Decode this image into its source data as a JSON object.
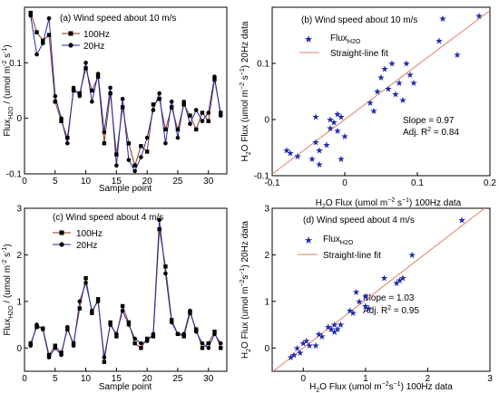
{
  "colors": {
    "c100": "#8B3A1A",
    "c20": "#1F2AA8",
    "star": "#1F2AA8",
    "fit": "#D9826A"
  },
  "chart_data": [
    {
      "id": "a",
      "type": "line",
      "title": "(a) Wind speed about 10 m/s",
      "xlabel": "Sample point",
      "ylabel": "Flux_H2O / (umol m^-2 s^-1)",
      "ylabel_parts": {
        "main": "Flux",
        "sub": "H2O",
        "rest1": " / (umol m",
        "sup1": "-2",
        "rest2": " s",
        "sup2": "-1",
        "rest3": ")"
      },
      "xlim": [
        0,
        33
      ],
      "ylim": [
        -0.1,
        0.2
      ],
      "xticks": [
        0,
        5,
        10,
        15,
        20,
        25,
        30
      ],
      "yticks": [
        -0.1,
        0,
        0.1
      ],
      "ytick_labels": [
        "-0.1",
        "0",
        "0.1"
      ],
      "x": [
        1,
        2,
        3,
        4,
        5,
        6,
        7,
        8,
        9,
        10,
        11,
        12,
        13,
        14,
        15,
        16,
        17,
        18,
        19,
        20,
        21,
        22,
        23,
        24,
        25,
        26,
        27,
        28,
        29,
        30,
        31,
        32
      ],
      "series": [
        {
          "name": "100Hz",
          "marker": "square",
          "values": [
            0.19,
            0.155,
            0.14,
            0.15,
            0.03,
            -0.005,
            -0.035,
            0.05,
            0.045,
            0.09,
            0.05,
            0.075,
            -0.045,
            0.045,
            -0.065,
            0.02,
            -0.045,
            -0.085,
            -0.05,
            -0.06,
            0.025,
            0.035,
            -0.02,
            0.02,
            -0.02,
            0.025,
            0.005,
            -0.02,
            0.01,
            -0.005,
            0.07,
            0.01
          ]
        },
        {
          "name": "20Hz",
          "marker": "circle",
          "values": [
            0.185,
            0.115,
            0.135,
            0.18,
            0.04,
            0.0,
            -0.045,
            0.055,
            0.04,
            0.1,
            0.03,
            0.08,
            -0.025,
            0.055,
            -0.085,
            0.035,
            -0.075,
            -0.095,
            -0.07,
            -0.035,
            0.015,
            0.045,
            -0.045,
            0.03,
            -0.035,
            0.03,
            -0.01,
            0.015,
            -0.005,
            0.01,
            0.075,
            0.005
          ]
        }
      ],
      "legend": "upper-center"
    },
    {
      "id": "b",
      "type": "scatter",
      "title": "(b) Wind speed about 10 m/s",
      "xlabel": "H2O Flux (umol m^-2 s^-1) 100Hz data",
      "ylabel": "H2O Flux (umol m^-2 s^-1) 20Hz data",
      "xlim": [
        -0.1,
        0.2
      ],
      "ylim": [
        -0.1,
        0.2
      ],
      "xticks": [
        -0.1,
        0,
        0.1,
        0.2
      ],
      "xtick_labels": [
        "-0.1",
        "0",
        "0.1",
        "0.2"
      ],
      "yticks": [
        -0.1,
        0,
        0.1
      ],
      "ytick_labels": [
        "-0.1",
        "0",
        "0.1"
      ],
      "points": [
        [
          -0.08,
          -0.055
        ],
        [
          -0.075,
          -0.06
        ],
        [
          -0.065,
          -0.065
        ],
        [
          -0.045,
          -0.07
        ],
        [
          -0.04,
          -0.04
        ],
        [
          -0.035,
          -0.055
        ],
        [
          -0.035,
          -0.08
        ],
        [
          -0.025,
          -0.045
        ],
        [
          -0.02,
          -0.015
        ],
        [
          -0.02,
          0.0
        ],
        [
          -0.015,
          -0.005
        ],
        [
          -0.01,
          0.01
        ],
        [
          -0.005,
          0.005
        ],
        [
          0.0,
          -0.03
        ],
        [
          -0.01,
          -0.02
        ],
        [
          -0.005,
          -0.07
        ],
        [
          -0.04,
          0.005
        ],
        [
          0.035,
          0.03
        ],
        [
          0.04,
          0.015
        ],
        [
          0.045,
          0.05
        ],
        [
          0.05,
          0.075
        ],
        [
          0.055,
          0.09
        ],
        [
          0.06,
          0.055
        ],
        [
          0.065,
          0.1
        ],
        [
          0.07,
          0.045
        ],
        [
          0.075,
          0.065
        ],
        [
          0.08,
          0.035
        ],
        [
          0.085,
          0.1
        ],
        [
          0.09,
          0.08
        ],
        [
          0.095,
          0.065
        ],
        [
          0.13,
          0.14
        ],
        [
          0.135,
          0.18
        ],
        [
          0.155,
          0.115
        ],
        [
          0.185,
          0.185
        ]
      ],
      "series_name": "Flux_H2O",
      "fit_name": "Straight-line fit",
      "fit": {
        "slope": 0.97,
        "intercept": 0.0
      },
      "annotations": [
        "Slope = 0.97",
        "Adj. R^2 = 0.84"
      ]
    },
    {
      "id": "c",
      "type": "line",
      "title": "(c) Wind speed about 4 m/s",
      "xlabel": "Sample point",
      "ylabel": "Flux_H2O / (umol m^-2 s^-1)",
      "ylabel_parts": {
        "main": "Flux",
        "sub": "H2O",
        "rest1": " / (umol m",
        "sup1": "-2",
        "rest2": " s",
        "sup2": "-1",
        "rest3": ")"
      },
      "xlim": [
        0,
        33
      ],
      "ylim": [
        -0.5,
        3.0
      ],
      "xticks": [
        0,
        5,
        10,
        15,
        20,
        25,
        30
      ],
      "yticks": [
        0,
        1,
        2,
        3
      ],
      "ytick_labels": [
        "0",
        "1",
        "2",
        "3"
      ],
      "x": [
        1,
        2,
        3,
        4,
        5,
        6,
        7,
        8,
        9,
        10,
        11,
        12,
        13,
        14,
        15,
        16,
        17,
        18,
        19,
        20,
        21,
        22,
        23,
        24,
        25,
        26,
        27,
        28,
        29,
        30,
        31,
        32
      ],
      "series": [
        {
          "name": "100Hz",
          "marker": "square",
          "values": [
            0.1,
            0.45,
            0.42,
            -0.15,
            0.05,
            -0.1,
            0.4,
            0.1,
            0.85,
            1.5,
            0.75,
            1.05,
            -0.3,
            0.55,
            0.25,
            0.9,
            0.55,
            0.1,
            0.0,
            0.2,
            0.25,
            2.55,
            1.75,
            0.6,
            0.3,
            0.25,
            0.75,
            0.4,
            0.0,
            0.1,
            0.35,
            0.0
          ]
        },
        {
          "name": "20Hz",
          "marker": "circle",
          "values": [
            0.05,
            0.5,
            0.4,
            -0.2,
            0.0,
            -0.15,
            0.45,
            0.05,
            1.0,
            1.4,
            0.8,
            1.0,
            -0.2,
            0.5,
            0.3,
            0.8,
            0.5,
            0.2,
            0.1,
            0.15,
            0.3,
            2.75,
            1.6,
            0.55,
            0.3,
            0.3,
            0.8,
            0.35,
            0.1,
            0.0,
            0.3,
            0.1
          ]
        }
      ],
      "legend": "upper-left"
    },
    {
      "id": "d",
      "type": "scatter",
      "title": "(d) Wind speed about 4 m/s",
      "xlabel": "H2O Flux (umol m^-2 s^-1) 100Hz data",
      "ylabel": "H2O Flux (umol m^-2 s^-1) 20Hz data",
      "xlim": [
        -0.5,
        3.0
      ],
      "ylim": [
        -0.5,
        3.0
      ],
      "xticks": [
        0,
        1,
        2,
        3
      ],
      "xtick_labels": [
        "0",
        "1",
        "2",
        "3"
      ],
      "yticks": [
        0,
        1,
        2,
        3
      ],
      "ytick_labels": [
        "0",
        "1",
        "2",
        "3"
      ],
      "points": [
        [
          -0.2,
          -0.2
        ],
        [
          -0.15,
          -0.15
        ],
        [
          -0.1,
          0.0
        ],
        [
          -0.05,
          -0.1
        ],
        [
          0.0,
          0.1
        ],
        [
          0.05,
          0.15
        ],
        [
          0.1,
          0.05
        ],
        [
          0.2,
          0.05
        ],
        [
          0.25,
          0.3
        ],
        [
          0.3,
          0.25
        ],
        [
          0.4,
          0.45
        ],
        [
          0.45,
          0.4
        ],
        [
          0.5,
          0.5
        ],
        [
          0.5,
          0.35
        ],
        [
          0.55,
          0.4
        ],
        [
          0.6,
          0.5
        ],
        [
          0.75,
          0.8
        ],
        [
          0.8,
          0.75
        ],
        [
          0.85,
          1.2
        ],
        [
          0.9,
          1.0
        ],
        [
          1.0,
          1.1
        ],
        [
          1.05,
          0.85
        ],
        [
          1.0,
          0.9
        ],
        [
          1.5,
          1.4
        ],
        [
          1.55,
          1.45
        ],
        [
          1.6,
          1.5
        ],
        [
          1.75,
          2.0
        ],
        [
          1.3,
          1.5
        ],
        [
          2.55,
          2.75
        ]
      ],
      "series_name": "Flux_H2O",
      "fit_name": "Straight-line fit",
      "fit": {
        "slope": 1.03,
        "intercept": 0.0
      },
      "annotations": [
        "Slope = 1.03",
        "Adj. R^2 = 0.95"
      ]
    }
  ]
}
